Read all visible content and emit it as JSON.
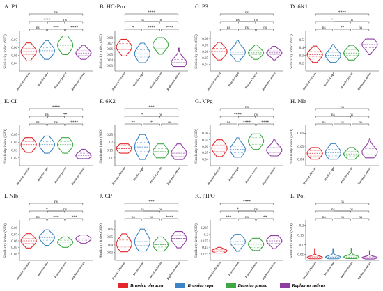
{
  "figure": {
    "colors": [
      "#e3262b",
      "#3b83c3",
      "#3fa845",
      "#8e3ea2"
    ]
  },
  "legend": {
    "items": [
      {
        "label": "Brassica oleracea",
        "color": "#e3262b"
      },
      {
        "label": "Brassica rapa",
        "color": "#3b83c3"
      },
      {
        "label": "Brassica juncea",
        "color": "#3fa845"
      },
      {
        "label": "Raphanus sativus",
        "color": "#8e3ea2"
      }
    ]
  },
  "chart_data": [
    {
      "type": "violin",
      "title": "A. P1",
      "ylabel": "Similarity index (SID)",
      "categories": [
        "Brassica oleracea",
        "Brassica rapa",
        "Brassica juncea",
        "Raphanus sativus"
      ],
      "ylim": [
        0.03,
        0.08
      ],
      "yticks": [
        0.04,
        0.05,
        0.06,
        0.07
      ],
      "series": [
        {
          "median": 0.055,
          "q1": 0.051,
          "q3": 0.059,
          "min": 0.043,
          "max": 0.066
        },
        {
          "median": 0.056,
          "q1": 0.052,
          "q3": 0.06,
          "min": 0.045,
          "max": 0.069
        },
        {
          "median": 0.063,
          "q1": 0.058,
          "q3": 0.067,
          "min": 0.051,
          "max": 0.075
        },
        {
          "median": 0.053,
          "q1": 0.05,
          "q3": 0.056,
          "min": 0.045,
          "max": 0.063
        }
      ],
      "comparisons": [
        {
          "a": 0,
          "b": 1,
          "label": "ns"
        },
        {
          "a": 1,
          "b": 2,
          "label": "***"
        },
        {
          "a": 2,
          "b": 3,
          "label": "****"
        },
        {
          "a": 0,
          "b": 2,
          "label": "****"
        },
        {
          "a": 1,
          "b": 3,
          "label": "ns"
        },
        {
          "a": 0,
          "b": 3,
          "label": "ns"
        }
      ]
    },
    {
      "type": "violin",
      "title": "B. HC-Pro",
      "ylabel": "Similarity index (SID)",
      "categories": [
        "Brassica oleracea",
        "Brassica rapa",
        "Brassica juncea",
        "Raphanus sativus"
      ],
      "ylim": [
        0.02,
        0.09
      ],
      "yticks": [
        0.03,
        0.04,
        0.05,
        0.06,
        0.07,
        0.08
      ],
      "series": [
        {
          "median": 0.063,
          "q1": 0.058,
          "q3": 0.069,
          "min": 0.047,
          "max": 0.077
        },
        {
          "median": 0.051,
          "q1": 0.045,
          "q3": 0.058,
          "min": 0.035,
          "max": 0.07
        },
        {
          "median": 0.067,
          "q1": 0.061,
          "q3": 0.072,
          "min": 0.05,
          "max": 0.08
        },
        {
          "median": 0.035,
          "q1": 0.031,
          "q3": 0.041,
          "min": 0.028,
          "max": 0.061
        }
      ],
      "comparisons": [
        {
          "a": 0,
          "b": 1,
          "label": "*"
        },
        {
          "a": 1,
          "b": 2,
          "label": "****"
        },
        {
          "a": 2,
          "b": 3,
          "label": "****"
        },
        {
          "a": 0,
          "b": 2,
          "label": "ns"
        },
        {
          "a": 1,
          "b": 3,
          "label": "ns"
        },
        {
          "a": 0,
          "b": 3,
          "label": "****"
        }
      ]
    },
    {
      "type": "violin",
      "title": "C. P3",
      "ylabel": "Similarity index (SID)",
      "categories": [
        "Brassica oleracea",
        "Brassica rapa",
        "Brassica juncea",
        "Raphanus sativus"
      ],
      "ylim": [
        0.03,
        0.09
      ],
      "yticks": [
        0.04,
        0.05,
        0.06,
        0.07,
        0.08
      ],
      "series": [
        {
          "median": 0.06,
          "q1": 0.056,
          "q3": 0.065,
          "min": 0.047,
          "max": 0.074
        },
        {
          "median": 0.059,
          "q1": 0.055,
          "q3": 0.064,
          "min": 0.045,
          "max": 0.077
        },
        {
          "median": 0.058,
          "q1": 0.055,
          "q3": 0.062,
          "min": 0.048,
          "max": 0.07
        },
        {
          "median": 0.058,
          "q1": 0.055,
          "q3": 0.061,
          "min": 0.047,
          "max": 0.068
        }
      ],
      "comparisons": [
        {
          "a": 0,
          "b": 1,
          "label": "ns"
        },
        {
          "a": 1,
          "b": 2,
          "label": "ns"
        },
        {
          "a": 2,
          "b": 3,
          "label": "ns"
        },
        {
          "a": 0,
          "b": 2,
          "label": "ns"
        },
        {
          "a": 1,
          "b": 3,
          "label": "ns"
        },
        {
          "a": 0,
          "b": 3,
          "label": "ns"
        }
      ]
    },
    {
      "type": "violin",
      "title": "D. 6K1",
      "ylabel": "Similarity index (SID)",
      "categories": [
        "Brassica oleracea",
        "Brassica rapa",
        "Brassica juncea",
        "Raphanus sativus"
      ],
      "ylim": [
        0.1,
        0.6
      ],
      "yticks": [
        0.2,
        0.3,
        0.4,
        0.5
      ],
      "series": [
        {
          "median": 0.31,
          "q1": 0.28,
          "q3": 0.35,
          "min": 0.21,
          "max": 0.42
        },
        {
          "median": 0.3,
          "q1": 0.27,
          "q3": 0.34,
          "min": 0.21,
          "max": 0.44
        },
        {
          "median": 0.33,
          "q1": 0.3,
          "q3": 0.37,
          "min": 0.24,
          "max": 0.43
        },
        {
          "median": 0.44,
          "q1": 0.4,
          "q3": 0.47,
          "min": 0.31,
          "max": 0.51
        }
      ],
      "comparisons": [
        {
          "a": 0,
          "b": 1,
          "label": "ns"
        },
        {
          "a": 1,
          "b": 2,
          "label": "**"
        },
        {
          "a": 2,
          "b": 3,
          "label": "ns"
        },
        {
          "a": 0,
          "b": 2,
          "label": "**"
        },
        {
          "a": 1,
          "b": 3,
          "label": "ns"
        },
        {
          "a": 0,
          "b": 3,
          "label": "****"
        }
      ]
    },
    {
      "type": "violin",
      "title": "E. CI",
      "ylabel": "Similarity index (SID)",
      "categories": [
        "Brassica oleracea",
        "Brassica rapa",
        "Brassica juncea",
        "Raphanus sativus"
      ],
      "ylim": [
        0.01,
        0.06
      ],
      "yticks": [
        0.02,
        0.03,
        0.04,
        0.05
      ],
      "series": [
        {
          "median": 0.037,
          "q1": 0.033,
          "q3": 0.041,
          "min": 0.027,
          "max": 0.046
        },
        {
          "median": 0.037,
          "q1": 0.033,
          "q3": 0.041,
          "min": 0.026,
          "max": 0.048
        },
        {
          "median": 0.037,
          "q1": 0.033,
          "q3": 0.041,
          "min": 0.026,
          "max": 0.046
        },
        {
          "median": 0.023,
          "q1": 0.021,
          "q3": 0.026,
          "min": 0.019,
          "max": 0.031
        }
      ],
      "comparisons": [
        {
          "a": 0,
          "b": 1,
          "label": "ns"
        },
        {
          "a": 1,
          "b": 2,
          "label": "ns"
        },
        {
          "a": 2,
          "b": 3,
          "label": "****"
        },
        {
          "a": 0,
          "b": 2,
          "label": "ns"
        },
        {
          "a": 1,
          "b": 3,
          "label": "**"
        },
        {
          "a": 0,
          "b": 3,
          "label": "****"
        }
      ]
    },
    {
      "type": "violin",
      "title": "F. 6K2",
      "ylabel": "Similarity index (SID)",
      "categories": [
        "Brassica oleracea",
        "Brassica rapa",
        "Brassica juncea",
        "Raphanus sativus"
      ],
      "ylim": [
        0.05,
        0.3
      ],
      "yticks": [
        0.1,
        0.15,
        0.2,
        0.25
      ],
      "series": [
        {
          "median": 0.16,
          "q1": 0.15,
          "q3": 0.18,
          "min": 0.13,
          "max": 0.19
        },
        {
          "median": 0.17,
          "q1": 0.14,
          "q3": 0.2,
          "min": 0.09,
          "max": 0.25
        },
        {
          "median": 0.14,
          "q1": 0.12,
          "q3": 0.16,
          "min": 0.1,
          "max": 0.19
        },
        {
          "median": 0.13,
          "q1": 0.11,
          "q3": 0.15,
          "min": 0.09,
          "max": 0.19
        }
      ],
      "comparisons": [
        {
          "a": 0,
          "b": 1,
          "label": "**"
        },
        {
          "a": 1,
          "b": 2,
          "label": "*"
        },
        {
          "a": 2,
          "b": 3,
          "label": "ns"
        },
        {
          "a": 0,
          "b": 2,
          "label": "*"
        },
        {
          "a": 1,
          "b": 3,
          "label": "ns"
        },
        {
          "a": 0,
          "b": 3,
          "label": "***"
        }
      ]
    },
    {
      "type": "violin",
      "title": "G. VPg",
      "ylabel": "Similarity index (SID)",
      "categories": [
        "Brassica oleracea",
        "Brassica rapa",
        "Brassica juncea",
        "Raphanus sativus"
      ],
      "ylim": [
        0.03,
        0.09
      ],
      "yticks": [
        0.04,
        0.05,
        0.06,
        0.07,
        0.08
      ],
      "series": [
        {
          "median": 0.057,
          "q1": 0.052,
          "q3": 0.062,
          "min": 0.044,
          "max": 0.07
        },
        {
          "median": 0.055,
          "q1": 0.05,
          "q3": 0.06,
          "min": 0.043,
          "max": 0.073
        },
        {
          "median": 0.068,
          "q1": 0.063,
          "q3": 0.073,
          "min": 0.055,
          "max": 0.079
        },
        {
          "median": 0.054,
          "q1": 0.05,
          "q3": 0.058,
          "min": 0.045,
          "max": 0.071
        }
      ],
      "comparisons": [
        {
          "a": 0,
          "b": 1,
          "label": "ns"
        },
        {
          "a": 1,
          "b": 2,
          "label": "****"
        },
        {
          "a": 2,
          "b": 3,
          "label": "****"
        },
        {
          "a": 0,
          "b": 2,
          "label": "****"
        },
        {
          "a": 1,
          "b": 3,
          "label": "ns"
        },
        {
          "a": 0,
          "b": 3,
          "label": "ns"
        }
      ]
    },
    {
      "type": "violin",
      "title": "H. NIa",
      "ylabel": "Similarity index (SID)",
      "categories": [
        "Brassica oleracea",
        "Brassica rapa",
        "Brassica juncea",
        "Raphanus sativus"
      ],
      "ylim": [
        0.035,
        0.065
      ],
      "yticks": [
        0.04,
        0.05,
        0.06
      ],
      "series": [
        {
          "median": 0.0445,
          "q1": 0.0425,
          "q3": 0.0465,
          "min": 0.04,
          "max": 0.049
        },
        {
          "median": 0.045,
          "q1": 0.0425,
          "q3": 0.0475,
          "min": 0.04,
          "max": 0.052
        },
        {
          "median": 0.044,
          "q1": 0.0425,
          "q3": 0.046,
          "min": 0.04,
          "max": 0.049
        },
        {
          "median": 0.0455,
          "q1": 0.0435,
          "q3": 0.048,
          "min": 0.041,
          "max": 0.056
        }
      ],
      "comparisons": [
        {
          "a": 0,
          "b": 1,
          "label": "ns"
        },
        {
          "a": 1,
          "b": 2,
          "label": "ns"
        },
        {
          "a": 2,
          "b": 3,
          "label": "ns"
        },
        {
          "a": 0,
          "b": 2,
          "label": "ns"
        },
        {
          "a": 1,
          "b": 3,
          "label": "ns"
        },
        {
          "a": 0,
          "b": 3,
          "label": "ns"
        }
      ]
    },
    {
      "type": "violin",
      "title": "I. NIb",
      "ylabel": "Similarity index (SID)",
      "categories": [
        "Brassica oleracea",
        "Brassica rapa",
        "Brassica juncea",
        "Raphanus sativus"
      ],
      "ylim": [
        0.03,
        0.09
      ],
      "yticks": [
        0.04,
        0.05,
        0.06,
        0.07,
        0.08
      ],
      "series": [
        {
          "median": 0.06,
          "q1": 0.056,
          "q3": 0.064,
          "min": 0.049,
          "max": 0.071
        },
        {
          "median": 0.065,
          "q1": 0.061,
          "q3": 0.069,
          "min": 0.053,
          "max": 0.077
        },
        {
          "median": 0.058,
          "q1": 0.055,
          "q3": 0.061,
          "min": 0.05,
          "max": 0.066
        },
        {
          "median": 0.063,
          "q1": 0.061,
          "q3": 0.066,
          "min": 0.056,
          "max": 0.069
        }
      ],
      "comparisons": [
        {
          "a": 0,
          "b": 1,
          "label": "ns"
        },
        {
          "a": 1,
          "b": 2,
          "label": "***"
        },
        {
          "a": 2,
          "b": 3,
          "label": "***"
        },
        {
          "a": 0,
          "b": 2,
          "label": "*"
        },
        {
          "a": 1,
          "b": 3,
          "label": "ns"
        },
        {
          "a": 0,
          "b": 3,
          "label": "ns"
        }
      ]
    },
    {
      "type": "violin",
      "title": "J. CP",
      "ylabel": "Similarity index (SID)",
      "categories": [
        "Brassica oleracea",
        "Brassica rapa",
        "Brassica juncea",
        "Raphanus sativus"
      ],
      "ylim": [
        0.02,
        0.07
      ],
      "yticks": [
        0.03,
        0.04,
        0.05,
        0.06
      ],
      "series": [
        {
          "median": 0.041,
          "q1": 0.037,
          "q3": 0.046,
          "min": 0.031,
          "max": 0.054
        },
        {
          "median": 0.044,
          "q1": 0.039,
          "q3": 0.05,
          "min": 0.032,
          "max": 0.06
        },
        {
          "median": 0.04,
          "q1": 0.037,
          "q3": 0.044,
          "min": 0.032,
          "max": 0.05
        },
        {
          "median": 0.048,
          "q1": 0.044,
          "q3": 0.052,
          "min": 0.036,
          "max": 0.057
        }
      ],
      "comparisons": [
        {
          "a": 0,
          "b": 1,
          "label": "ns"
        },
        {
          "a": 1,
          "b": 2,
          "label": "ns"
        },
        {
          "a": 2,
          "b": 3,
          "label": "****"
        },
        {
          "a": 0,
          "b": 2,
          "label": "ns"
        },
        {
          "a": 1,
          "b": 3,
          "label": "ns"
        },
        {
          "a": 0,
          "b": 3,
          "label": "***"
        }
      ]
    },
    {
      "type": "violin",
      "title": "K. PIPO",
      "ylabel": "Similarity index (SID)",
      "categories": [
        "Brassica oleracea",
        "Brassica rapa",
        "Brassica juncea",
        "Raphanus sativus"
      ],
      "ylim": [
        0.1,
        0.25
      ],
      "yticks": [
        0.125,
        0.15,
        0.175,
        0.2,
        0.225
      ],
      "series": [
        {
          "median": 0.137,
          "q1": 0.133,
          "q3": 0.141,
          "min": 0.128,
          "max": 0.15
        },
        {
          "median": 0.172,
          "q1": 0.16,
          "q3": 0.182,
          "min": 0.135,
          "max": 0.2
        },
        {
          "median": 0.162,
          "q1": 0.15,
          "q3": 0.17,
          "min": 0.138,
          "max": 0.185
        },
        {
          "median": 0.175,
          "q1": 0.165,
          "q3": 0.183,
          "min": 0.145,
          "max": 0.195
        }
      ],
      "comparisons": [
        {
          "a": 0,
          "b": 1,
          "label": "***"
        },
        {
          "a": 1,
          "b": 2,
          "label": "ns"
        },
        {
          "a": 2,
          "b": 3,
          "label": "**"
        },
        {
          "a": 0,
          "b": 2,
          "label": "*"
        },
        {
          "a": 1,
          "b": 3,
          "label": "ns"
        },
        {
          "a": 0,
          "b": 3,
          "label": "****"
        }
      ]
    },
    {
      "type": "violin",
      "title": "L. Pol",
      "ylabel": "Similarity index (SID)",
      "categories": [
        "Brassica oleracea",
        "Brassica rapa",
        "Brassica juncea",
        "Raphanus sativus"
      ],
      "ylim": [
        0.02,
        0.22
      ],
      "yticks": [
        0.05,
        0.1,
        0.15,
        0.2
      ],
      "series": [
        {
          "median": 0.035,
          "q1": 0.032,
          "q3": 0.04,
          "min": 0.028,
          "max": 0.08
        },
        {
          "median": 0.036,
          "q1": 0.032,
          "q3": 0.041,
          "min": 0.028,
          "max": 0.08
        },
        {
          "median": 0.037,
          "q1": 0.033,
          "q3": 0.042,
          "min": 0.029,
          "max": 0.082
        },
        {
          "median": 0.034,
          "q1": 0.031,
          "q3": 0.038,
          "min": 0.027,
          "max": 0.07
        }
      ],
      "comparisons": [
        {
          "a": 0,
          "b": 1,
          "label": "ns"
        },
        {
          "a": 1,
          "b": 2,
          "label": "ns"
        },
        {
          "a": 2,
          "b": 3,
          "label": "ns"
        },
        {
          "a": 0,
          "b": 2,
          "label": "ns"
        },
        {
          "a": 1,
          "b": 3,
          "label": "ns"
        },
        {
          "a": 0,
          "b": 3,
          "label": "ns"
        }
      ]
    }
  ]
}
